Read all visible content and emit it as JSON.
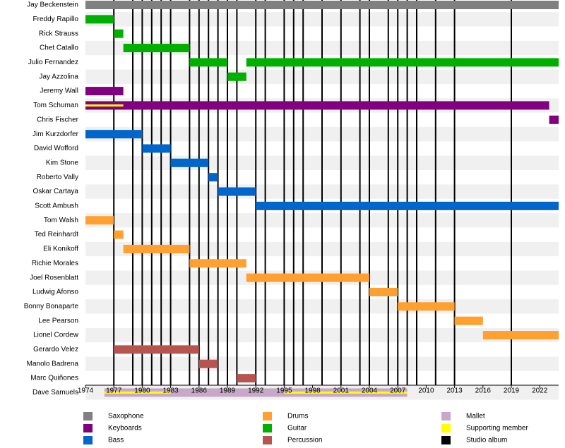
{
  "chart_data": {
    "type": "timeline",
    "xlim": [
      1974,
      2024
    ],
    "xticks": [
      1974,
      1977,
      1980,
      1983,
      1986,
      1989,
      1992,
      1995,
      1998,
      2001,
      2004,
      2007,
      2010,
      2013,
      2016,
      2019,
      2022
    ],
    "series": [
      {
        "name": "Saxophone",
        "color": "#808080"
      },
      {
        "name": "Keyboards",
        "color": "#800080"
      },
      {
        "name": "Bass",
        "color": "#0066cc"
      },
      {
        "name": "Drums",
        "color": "#ffa030"
      },
      {
        "name": "Guitar",
        "color": "#00b000"
      },
      {
        "name": "Percussion",
        "color": "#b85450"
      },
      {
        "name": "Mallet",
        "color": "#c8a8c8"
      },
      {
        "name": "Supporting member",
        "color": "#ffff00"
      },
      {
        "name": "Studio album",
        "color": "#000000"
      }
    ],
    "albums": [
      1977,
      1979,
      1980,
      1981,
      1982,
      1983,
      1985,
      1986,
      1987,
      1988,
      1989,
      1990,
      1992,
      1993,
      1995,
      1996,
      1997,
      1999,
      2001,
      2003,
      2004,
      2006,
      2007,
      2008,
      2009,
      2011,
      2013,
      2019
    ],
    "members": [
      {
        "name": "Jay Beckenstein",
        "bars": [
          {
            "role": "Saxophone",
            "start": 1974,
            "end": 2024
          }
        ]
      },
      {
        "name": "Freddy Rapillo",
        "bars": [
          {
            "role": "Guitar",
            "start": 1974,
            "end": 1977
          }
        ]
      },
      {
        "name": "Rick Strauss",
        "bars": [
          {
            "role": "Guitar",
            "start": 1977,
            "end": 1978
          }
        ]
      },
      {
        "name": "Chet Catallo",
        "bars": [
          {
            "role": "Guitar",
            "start": 1978,
            "end": 1985
          }
        ]
      },
      {
        "name": "Julio Fernandez",
        "bars": [
          {
            "role": "Guitar",
            "start": 1985,
            "end": 1989
          },
          {
            "role": "Guitar",
            "start": 1991,
            "end": 2024
          }
        ]
      },
      {
        "name": "Jay Azzolina",
        "bars": [
          {
            "role": "Guitar",
            "start": 1989,
            "end": 1991
          }
        ]
      },
      {
        "name": "Jeremy Wall",
        "bars": [
          {
            "role": "Keyboards",
            "start": 1974,
            "end": 1978
          }
        ]
      },
      {
        "name": "Tom Schuman",
        "bars": [
          {
            "role": "Keyboards",
            "start": 1974,
            "end": 2023
          },
          {
            "role": "Supporting member",
            "start": 1974,
            "end": 1978
          }
        ]
      },
      {
        "name": "Chris Fischer",
        "bars": [
          {
            "role": "Keyboards",
            "start": 2023,
            "end": 2024
          }
        ]
      },
      {
        "name": "Jim Kurzdorfer",
        "bars": [
          {
            "role": "Bass",
            "start": 1974,
            "end": 1980
          }
        ]
      },
      {
        "name": "David Wofford",
        "bars": [
          {
            "role": "Bass",
            "start": 1980,
            "end": 1983
          }
        ]
      },
      {
        "name": "Kim Stone",
        "bars": [
          {
            "role": "Bass",
            "start": 1983,
            "end": 1987
          }
        ]
      },
      {
        "name": "Roberto Vally",
        "bars": [
          {
            "role": "Bass",
            "start": 1987,
            "end": 1988
          }
        ]
      },
      {
        "name": "Oskar Cartaya",
        "bars": [
          {
            "role": "Bass",
            "start": 1988,
            "end": 1992
          }
        ]
      },
      {
        "name": "Scott Ambush",
        "bars": [
          {
            "role": "Bass",
            "start": 1992,
            "end": 2024
          }
        ]
      },
      {
        "name": "Tom Walsh",
        "bars": [
          {
            "role": "Drums",
            "start": 1974,
            "end": 1977
          }
        ]
      },
      {
        "name": "Ted Reinhardt",
        "bars": [
          {
            "role": "Drums",
            "start": 1977,
            "end": 1978
          }
        ]
      },
      {
        "name": "Eli Konikoff",
        "bars": [
          {
            "role": "Drums",
            "start": 1978,
            "end": 1985
          }
        ]
      },
      {
        "name": "Richie Morales",
        "bars": [
          {
            "role": "Drums",
            "start": 1985,
            "end": 1991
          }
        ]
      },
      {
        "name": "Joel Rosenblatt",
        "bars": [
          {
            "role": "Drums",
            "start": 1991,
            "end": 2004
          }
        ]
      },
      {
        "name": "Ludwig Afonso",
        "bars": [
          {
            "role": "Drums",
            "start": 2004,
            "end": 2007
          }
        ]
      },
      {
        "name": "Bonny Bonaparte",
        "bars": [
          {
            "role": "Drums",
            "start": 2007,
            "end": 2013
          }
        ]
      },
      {
        "name": "Lee Pearson",
        "bars": [
          {
            "role": "Drums",
            "start": 2013,
            "end": 2016
          }
        ]
      },
      {
        "name": "Lionel Cordew",
        "bars": [
          {
            "role": "Drums",
            "start": 2016,
            "end": 2024
          }
        ]
      },
      {
        "name": "Gerardo Velez",
        "bars": [
          {
            "role": "Percussion",
            "start": 1977,
            "end": 1986
          }
        ]
      },
      {
        "name": "Manolo Badrena",
        "bars": [
          {
            "role": "Percussion",
            "start": 1986,
            "end": 1988
          }
        ]
      },
      {
        "name": "Marc Quiñones",
        "bars": [
          {
            "role": "Percussion",
            "start": 1990,
            "end": 1992
          }
        ]
      },
      {
        "name": "Dave Samuels",
        "bars": [
          {
            "role": "Mallet",
            "start": 1976,
            "end": 2008
          },
          {
            "role": "Supporting member",
            "start": 1976,
            "end": 1983
          },
          {
            "role": "Supporting member",
            "start": 1995,
            "end": 2008
          }
        ]
      }
    ]
  }
}
